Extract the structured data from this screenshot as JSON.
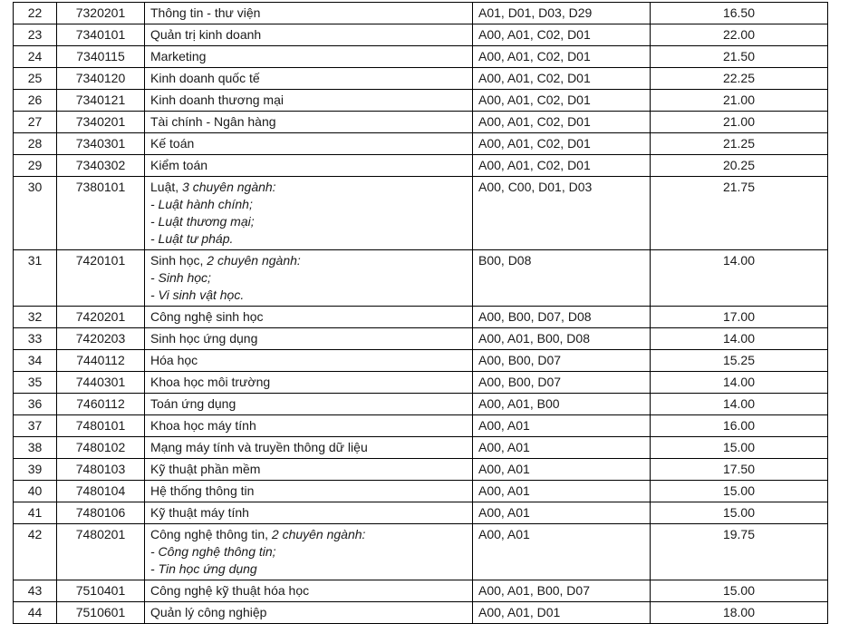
{
  "rows": [
    {
      "no": "22",
      "code": "7320201",
      "name": "Thông tin - thư viện",
      "blocks": "A01, D01, D03, D29",
      "score": "16.50"
    },
    {
      "no": "23",
      "code": "7340101",
      "name": "Quản trị kinh doanh",
      "blocks": "A00, A01, C02, D01",
      "score": "22.00"
    },
    {
      "no": "24",
      "code": "7340115",
      "name": "Marketing",
      "blocks": "A00, A01, C02, D01",
      "score": "21.50"
    },
    {
      "no": "25",
      "code": "7340120",
      "name": "Kinh doanh quốc tế",
      "blocks": "A00, A01, C02, D01",
      "score": "22.25"
    },
    {
      "no": "26",
      "code": "7340121",
      "name": "Kinh doanh thương mại",
      "blocks": "A00, A01, C02, D01",
      "score": "21.00"
    },
    {
      "no": "27",
      "code": "7340201",
      "name": "Tài chính - Ngân hàng",
      "blocks": "A00, A01, C02, D01",
      "score": "21.00"
    },
    {
      "no": "28",
      "code": "7340301",
      "name": "Kế toán",
      "blocks": "A00, A01, C02, D01",
      "score": "21.25"
    },
    {
      "no": "29",
      "code": "7340302",
      "name": "Kiểm toán",
      "blocks": "A00, A01, C02, D01",
      "score": "20.25"
    },
    {
      "no": "30",
      "code": "7380101",
      "name": "Luật, ",
      "name_italic": "3 chuyên ngành:",
      "sublines": [
        "- Luật hành chính;",
        "- Luật thương mại;",
        "- Luật tư pháp."
      ],
      "blocks": "A00, C00, D01, D03",
      "score": "21.75"
    },
    {
      "no": "31",
      "code": "7420101",
      "name": "Sinh học, ",
      "name_italic": "2 chuyên ngành:",
      "sublines": [
        "- Sinh học;",
        "- Vi sinh vật học."
      ],
      "blocks": "B00, D08",
      "score": "14.00"
    },
    {
      "no": "32",
      "code": "7420201",
      "name": "Công nghệ sinh học",
      "blocks": "A00, B00, D07, D08",
      "score": "17.00"
    },
    {
      "no": "33",
      "code": "7420203",
      "name": "Sinh học ứng dụng",
      "blocks": "A00, A01, B00, D08",
      "score": "14.00"
    },
    {
      "no": "34",
      "code": "7440112",
      "name": "Hóa học",
      "blocks": "A00, B00, D07",
      "score": "15.25"
    },
    {
      "no": "35",
      "code": "7440301",
      "name": "Khoa học môi trường",
      "blocks": "A00, B00, D07",
      "score": "14.00"
    },
    {
      "no": "36",
      "code": "7460112",
      "name": "Toán ứng dụng",
      "blocks": "A00, A01, B00",
      "score": "14.00"
    },
    {
      "no": "37",
      "code": "7480101",
      "name": "Khoa học máy tính",
      "blocks": "A00, A01",
      "score": "16.00"
    },
    {
      "no": "38",
      "code": "7480102",
      "name": "Mạng máy tính và truyền thông dữ liệu",
      "blocks": "A00, A01",
      "score": "15.00"
    },
    {
      "no": "39",
      "code": "7480103",
      "name": "Kỹ thuật phần mềm",
      "blocks": "A00, A01",
      "score": "17.50"
    },
    {
      "no": "40",
      "code": "7480104",
      "name": "Hệ thống thông tin",
      "blocks": "A00, A01",
      "score": "15.00"
    },
    {
      "no": "41",
      "code": "7480106",
      "name": "Kỹ thuật máy tính",
      "blocks": "A00, A01",
      "score": "15.00"
    },
    {
      "no": "42",
      "code": "7480201",
      "name": "Công nghệ thông tin, ",
      "name_italic": "2 chuyên ngành:",
      "sublines": [
        "- Công nghệ thông tin;",
        "- Tin học ứng dụng"
      ],
      "blocks": "A00, A01",
      "score": "19.75"
    },
    {
      "no": "43",
      "code": "7510401",
      "name": "Công nghệ kỹ thuật hóa học",
      "blocks": "A00, A01, B00, D07",
      "score": "15.00"
    },
    {
      "no": "44",
      "code": "7510601",
      "name": "Quản lý công nghiệp",
      "blocks": "A00, A01, D01",
      "score": "18.00"
    }
  ]
}
